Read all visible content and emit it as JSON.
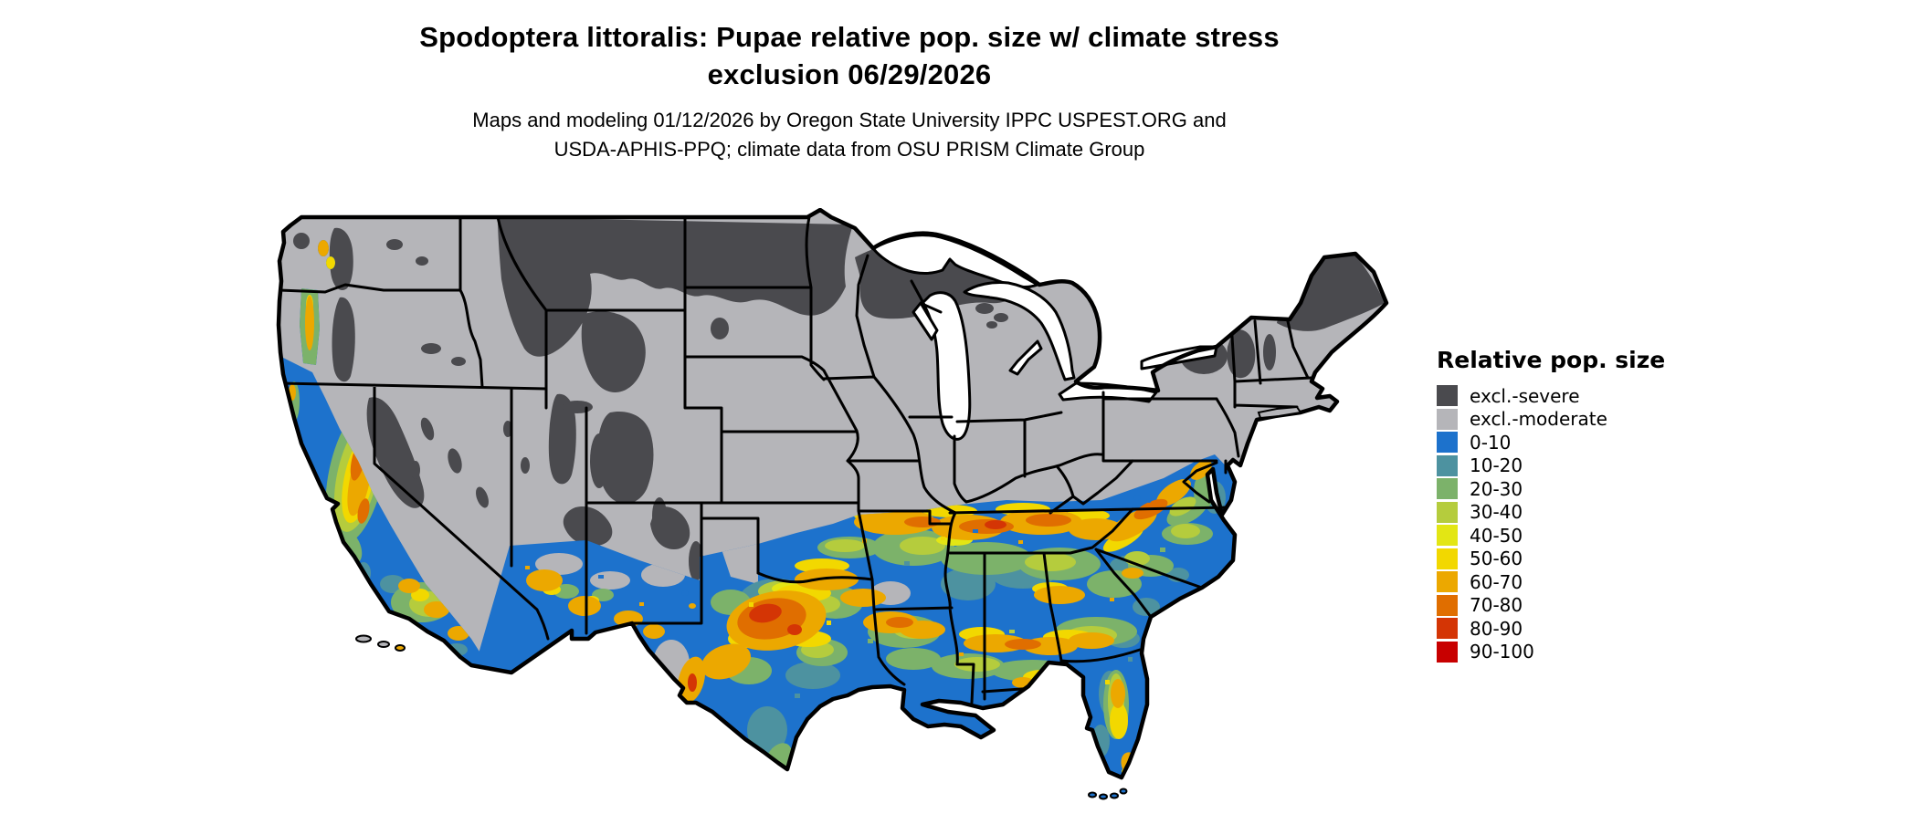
{
  "header": {
    "title_line1": "Spodoptera littoralis: Pupae relative pop. size w/ climate stress",
    "title_line2": "exclusion 06/29/2026",
    "subtitle_line1": "Maps and modeling 01/12/2026 by Oregon State University IPPC USPEST.ORG and",
    "subtitle_line2": "USDA-APHIS-PPQ; climate data from OSU PRISM Climate Group"
  },
  "legend": {
    "title": "Relative pop. size",
    "items": [
      {
        "label": "excl.-severe",
        "key": "severe"
      },
      {
        "label": "excl.-moderate",
        "key": "moderate"
      },
      {
        "label": "0-10",
        "key": "b0"
      },
      {
        "label": "10-20",
        "key": "b1"
      },
      {
        "label": "20-30",
        "key": "b2"
      },
      {
        "label": "30-40",
        "key": "b3"
      },
      {
        "label": "40-50",
        "key": "b4"
      },
      {
        "label": "50-60",
        "key": "b5"
      },
      {
        "label": "60-70",
        "key": "b6"
      },
      {
        "label": "70-80",
        "key": "b7"
      },
      {
        "label": "80-90",
        "key": "b8"
      },
      {
        "label": "90-100",
        "key": "b9"
      }
    ]
  },
  "palette": {
    "severe": "#4a4a4e",
    "moderate": "#b5b5b9",
    "b0": "#1d72cc",
    "b1": "#4d92a0",
    "b2": "#7cb26a",
    "b3": "#b5cc3d",
    "b4": "#e3e614",
    "b5": "#f2d800",
    "b6": "#eca800",
    "b7": "#e06e00",
    "b8": "#d43505",
    "b9": "#c80000",
    "water": "#ffffff",
    "border": "#000000"
  },
  "map": {
    "region": "Contiguous United States",
    "projection_note": "state boundaries drawn in black over raster population-size classes"
  },
  "chart_data": {
    "type": "heatmap",
    "subtype": "choropleth-raster-map",
    "title": "Spodoptera littoralis: Pupae relative pop. size w/ climate stress exclusion 06/29/2026",
    "legend_title": "Relative pop. size",
    "classes": [
      "excl.-severe",
      "excl.-moderate",
      "0-10",
      "10-20",
      "20-30",
      "30-40",
      "40-50",
      "50-60",
      "60-70",
      "70-80",
      "80-90",
      "90-100"
    ],
    "class_colors": [
      "#4a4a4e",
      "#b5b5b9",
      "#1d72cc",
      "#4d92a0",
      "#7cb26a",
      "#b5cc3d",
      "#e3e614",
      "#f2d800",
      "#eca800",
      "#e06e00",
      "#d43505",
      "#c80000"
    ],
    "legend_position": "right",
    "visible_pattern": [
      {
        "area": "N Montana, North Dakota, N Minnesota, N Wisconsin, Upper Michigan, Rockies (ID/WY/CO/UT), Sierra Nevada, Cascades, Adirondacks, N Maine",
        "class": "excl.-severe"
      },
      {
        "area": "Most of the northern and interior U.S. (Pacific NW lowlands, Great Basin, Plains, Midwest, Northeast)",
        "class": "excl.-moderate"
      },
      {
        "area": "East Texas, Gulf coastal plain, S Louisiana, S Georgia/Carolinas coastal plain, S Florida, coastal California, S Texas valley",
        "class": "0-20"
      },
      {
        "area": "Transition bands across central MS/AL/GA, N Louisiana edges, central Florida ridge, Sacramento/San Joaquin valley rim",
        "class": "20-50"
      },
      {
        "area": "Band from N Arkansas across Tennessee into N Alabama/Georgia and Carolina piedmont; central/west Texas; California Central Valley core; S Arizona spots; Willamette Valley",
        "class": "50-80"
      },
      {
        "area": "Small hot cores in central Texas and Tennessee",
        "class": "80-90"
      }
    ]
  }
}
